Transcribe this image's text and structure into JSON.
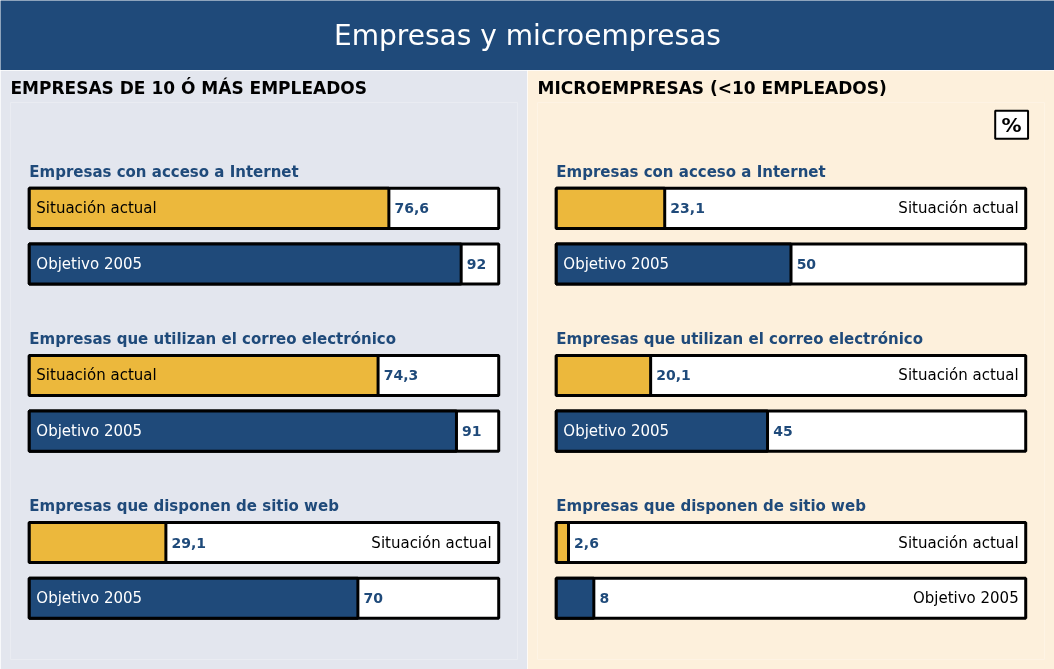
{
  "chart_data": [
    {
      "type": "bar",
      "orientation": "horizontal",
      "title": "Empresas y microempresas",
      "subtitle": "EMPRESAS DE 10 Ó MÁS EMPLEADOS",
      "annotations": [
        "Empresas con acceso a Internet",
        "Empresas que utilizan el correo electrónico",
        "Empresas que disponen de sitio web"
      ],
      "categories": [
        "Situación actual",
        "Objetivo 2005",
        "Situación actual",
        "Objetivo 2005",
        "Situación actual",
        "Objetivo 2005"
      ],
      "values": [
        76.6,
        92,
        74.3,
        91,
        29.1,
        70
      ],
      "value_labels": [
        "76,6",
        "92",
        "74,3",
        "91",
        "29,1",
        "70"
      ],
      "colors": [
        "#ecb83c",
        "#1f4a7a",
        "#ecb83c",
        "#1f4a7a",
        "#ecb83c",
        "#1f4a7a"
      ],
      "xlim": [
        0,
        100
      ],
      "tick_labels": false,
      "grid": false
    },
    {
      "type": "bar",
      "orientation": "horizontal",
      "xlabel": "%",
      "subtitle": "MICROEMPRESAS (<10 EMPLEADOS)",
      "annotations": [
        "Empresas con acceso a Internet",
        "Empresas que utilizan el correo electrónico",
        "Empresas que disponen de sitio web"
      ],
      "categories": [
        "Situación actual",
        "Objetivo 2005",
        "Situación actual",
        "Objetivo 2005",
        "Situación actual",
        "Objetivo 2005"
      ],
      "values": [
        23.1,
        50,
        20.1,
        45,
        2.6,
        8
      ],
      "value_labels": [
        "23,1",
        "50",
        "20,1",
        "45",
        "2,6",
        "8"
      ],
      "colors": [
        "#ecb83c",
        "#1f4a7a",
        "#ecb83c",
        "#1f4a7a",
        "#ecb83c",
        "#1f4a7a"
      ],
      "xlim": [
        0,
        100
      ],
      "tick_labels": false,
      "grid": false
    }
  ]
}
